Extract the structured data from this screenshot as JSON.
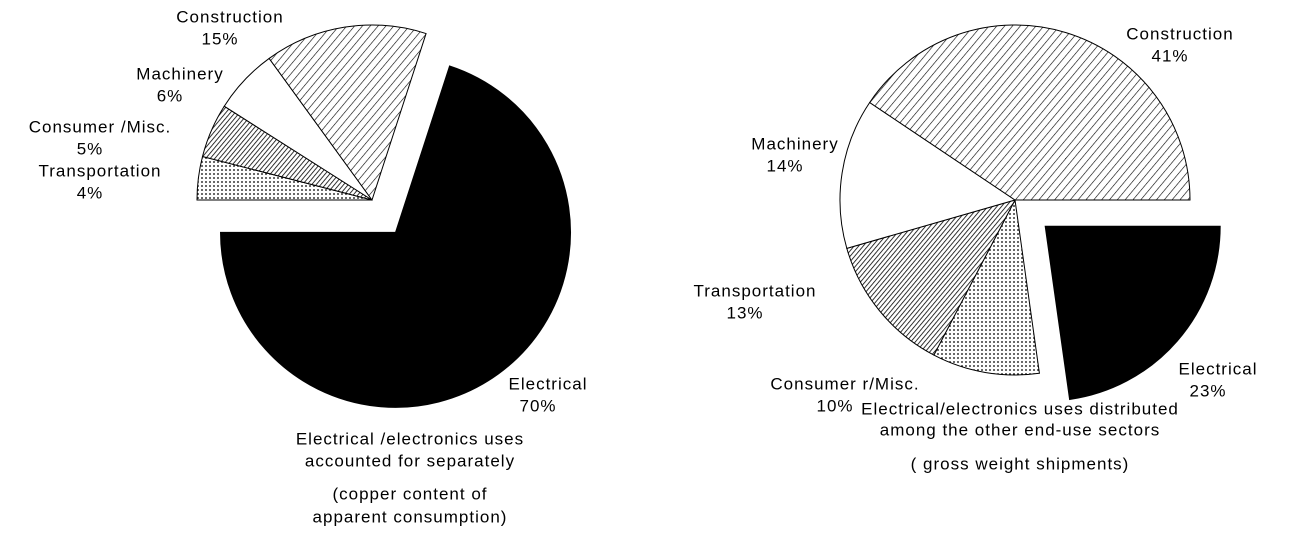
{
  "chart_data": [
    {
      "type": "pie",
      "categories": [
        "Transportation",
        "Consumer /Misc.",
        "Machinery",
        "Construction",
        "Electrical"
      ],
      "values": [
        4,
        5,
        6,
        15,
        70
      ],
      "value_labels": [
        "4%",
        "5%",
        "6%",
        "15%",
        "70%"
      ],
      "caption": [
        "Electrical /electronics uses",
        "accounted for separately"
      ],
      "subcaption": [
        "(copper content of",
        "apparent consumption)"
      ]
    },
    {
      "type": "pie",
      "categories": [
        "Electrical",
        "Consumer r/Misc.",
        "Transportation",
        "Machinery",
        "Construction"
      ],
      "values": [
        23,
        10,
        13,
        14,
        41
      ],
      "value_labels": [
        "23%",
        "10%",
        "13%",
        "14%",
        "41%"
      ],
      "caption": [
        "Electrical/electronics uses distributed",
        "among the other end-use sectors"
      ],
      "subcaption": [
        "( gross weight shipments)"
      ]
    }
  ]
}
